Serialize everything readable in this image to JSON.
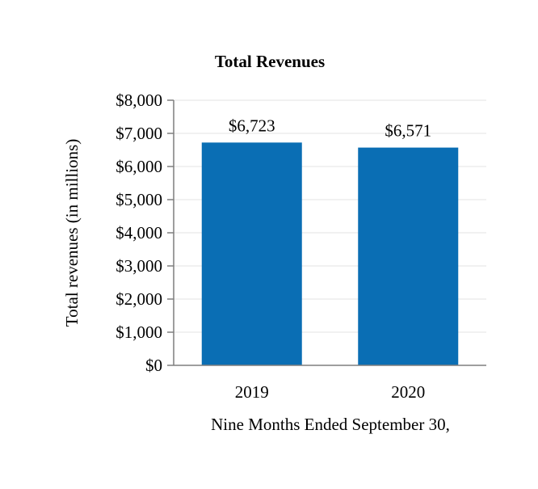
{
  "chart_data": {
    "type": "bar",
    "title": "Total Revenues",
    "xlabel": "Nine Months Ended September 30,",
    "ylabel": "Total revenues (in millions)",
    "categories": [
      "2019",
      "2020"
    ],
    "values": [
      6723,
      6571
    ],
    "data_labels": [
      "$6,723",
      "$6,571"
    ],
    "ylim": [
      0,
      8000
    ],
    "yticks": [
      0,
      1000,
      2000,
      3000,
      4000,
      5000,
      6000,
      7000,
      8000
    ],
    "ytick_labels": [
      "$0",
      "$1,000",
      "$2,000",
      "$3,000",
      "$4,000",
      "$5,000",
      "$6,000",
      "$7,000",
      "$8,000"
    ],
    "grid": true,
    "legend": "none",
    "bar_color": "#0a6eb4",
    "grid_color": "#e3e3e3",
    "axis_color": "#7f7f7f"
  }
}
